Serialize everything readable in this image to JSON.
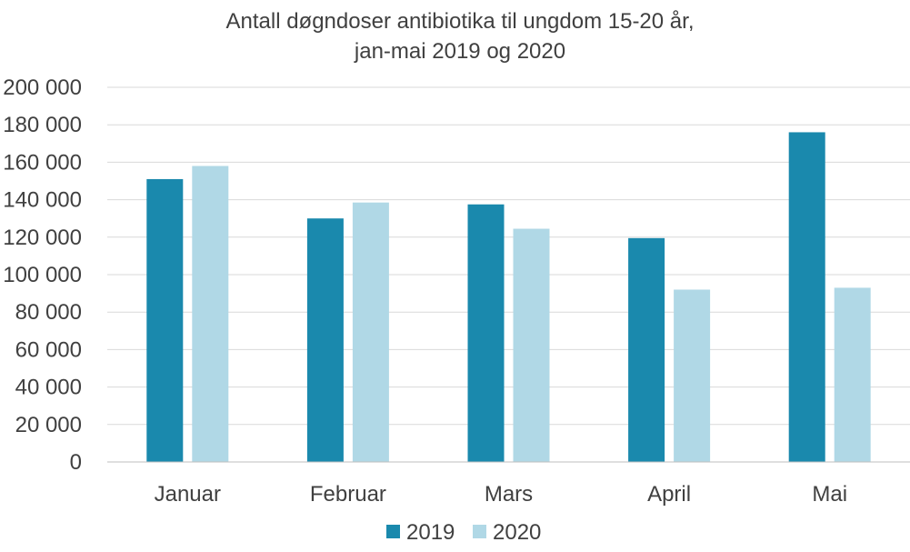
{
  "chart_data": {
    "type": "bar",
    "title": "Antall døgndoser antibiotika til ungdom 15-20 år,",
    "subtitle": "jan-mai 2019 og 2020",
    "xlabel": "",
    "ylabel": "",
    "categories": [
      "Januar",
      "Februar",
      "Mars",
      "April",
      "Mai"
    ],
    "series": [
      {
        "name": "2019",
        "color": "#1a89ad",
        "values": [
          151000,
          130000,
          137500,
          119500,
          176000
        ]
      },
      {
        "name": "2020",
        "color": "#b0d8e6",
        "values": [
          158000,
          138500,
          124500,
          92000,
          93000
        ]
      }
    ],
    "ylim": [
      0,
      200000
    ],
    "yticks": [
      0,
      20000,
      40000,
      60000,
      80000,
      100000,
      120000,
      140000,
      160000,
      180000,
      200000
    ],
    "ytick_labels": [
      "0",
      "20 000",
      "40 000",
      "60 000",
      "80 000",
      "100 000",
      "120 000",
      "140 000",
      "160 000",
      "180 000",
      "200 000"
    ],
    "grid": true,
    "legend": "bottom-center"
  }
}
